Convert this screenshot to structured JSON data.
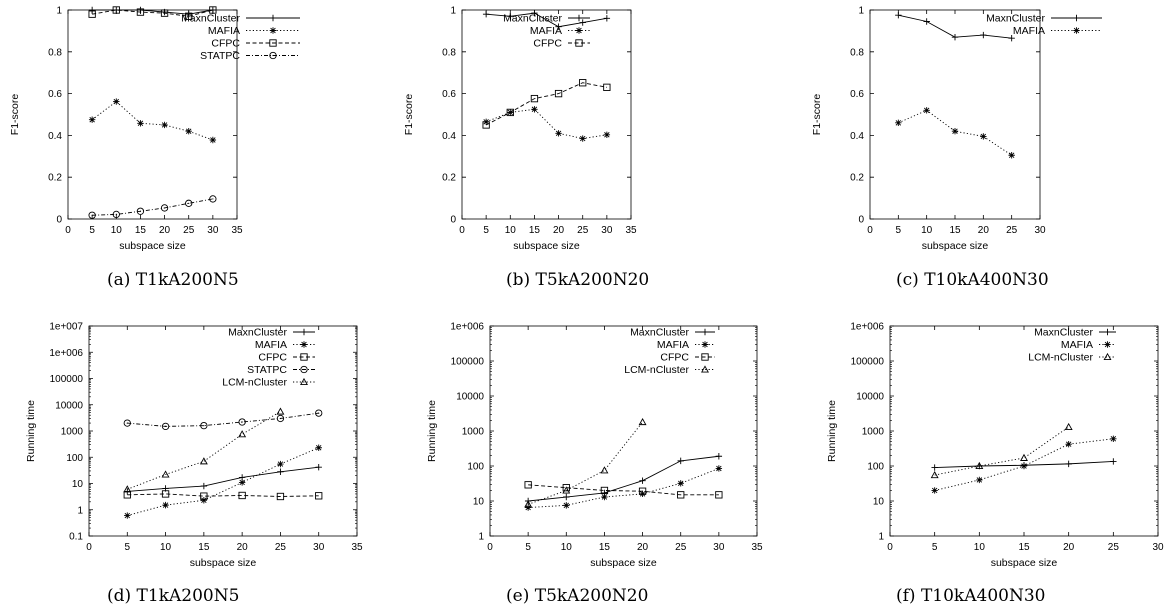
{
  "chart_data": [
    {
      "type": "line",
      "caption": "(a) T1kA200N5",
      "xlabel": "subspace size",
      "ylabel": "F1-score",
      "xlim": [
        0,
        35
      ],
      "xticks": [
        "0",
        "5",
        "10",
        "15",
        "20",
        "25",
        "30",
        "35"
      ],
      "ylim": [
        0,
        1
      ],
      "yticks": [
        "0",
        "0.2",
        "0.4",
        "0.6",
        "0.8",
        "1"
      ],
      "legend_position": "top-right-outside",
      "series": [
        {
          "name": "MaxnCluster",
          "marker": "plus",
          "dash": "solid",
          "x": [
            5,
            10,
            15,
            20,
            25,
            30
          ],
          "y": [
            1.0,
            1.0,
            1.0,
            0.99,
            0.98,
            1.0
          ]
        },
        {
          "name": "MAFIA",
          "marker": "star",
          "dash": "dotted",
          "x": [
            5,
            10,
            15,
            20,
            25,
            30
          ],
          "y": [
            0.475,
            0.562,
            0.458,
            0.45,
            0.42,
            0.378
          ]
        },
        {
          "name": "CFPC",
          "marker": "square",
          "dash": "dashed",
          "x": [
            5,
            10,
            15,
            20,
            25,
            30
          ],
          "y": [
            0.98,
            1.0,
            0.99,
            0.985,
            0.97,
            1.0
          ]
        },
        {
          "name": "STATPC",
          "marker": "circle",
          "dash": "dashdot",
          "x": [
            5,
            10,
            15,
            20,
            25,
            30
          ],
          "y": [
            0.018,
            0.022,
            0.037,
            0.053,
            0.075,
            0.096
          ]
        }
      ]
    },
    {
      "type": "line",
      "caption": "(b) T5kA200N20",
      "xlabel": "subspace size",
      "ylabel": "F1-score",
      "xlim": [
        0,
        35
      ],
      "xticks": [
        "0",
        "5",
        "10",
        "15",
        "20",
        "25",
        "30",
        "35"
      ],
      "ylim": [
        0,
        1
      ],
      "yticks": [
        "0",
        "0.2",
        "0.4",
        "0.6",
        "0.8",
        "1"
      ],
      "legend_position": "top-right",
      "series": [
        {
          "name": "MaxnCluster",
          "marker": "plus",
          "dash": "solid",
          "x": [
            5,
            10,
            15,
            20,
            25,
            30
          ],
          "y": [
            0.98,
            0.97,
            0.985,
            0.92,
            0.94,
            0.96
          ]
        },
        {
          "name": "MAFIA",
          "marker": "star",
          "dash": "dotted",
          "x": [
            5,
            10,
            15,
            20,
            25,
            30
          ],
          "y": [
            0.465,
            0.51,
            0.525,
            0.41,
            0.385,
            0.403
          ]
        },
        {
          "name": "CFPC",
          "marker": "square",
          "dash": "dashed",
          "x": [
            5,
            10,
            15,
            20,
            25,
            30
          ],
          "y": [
            0.45,
            0.51,
            0.576,
            0.6,
            0.652,
            0.63
          ]
        }
      ]
    },
    {
      "type": "line",
      "caption": "(c) T10kA400N30",
      "xlabel": "subspace size",
      "ylabel": "F1-score",
      "xlim": [
        0,
        30
      ],
      "xticks": [
        "0",
        "5",
        "10",
        "15",
        "20",
        "25",
        "30"
      ],
      "ylim": [
        0,
        1
      ],
      "yticks": [
        "0",
        "0.2",
        "0.4",
        "0.6",
        "0.8",
        "1"
      ],
      "legend_position": "top-right-outside",
      "series": [
        {
          "name": "MaxnCluster",
          "marker": "plus",
          "dash": "solid",
          "x": [
            5,
            10,
            15,
            20,
            25
          ],
          "y": [
            0.975,
            0.945,
            0.87,
            0.88,
            0.865
          ]
        },
        {
          "name": "MAFIA",
          "marker": "star",
          "dash": "dotted",
          "x": [
            5,
            10,
            15,
            20,
            25
          ],
          "y": [
            0.46,
            0.52,
            0.42,
            0.395,
            0.305
          ]
        }
      ]
    },
    {
      "type": "line",
      "caption": "(d) T1kA200N5",
      "xlabel": "subspace size",
      "ylabel": "Running time",
      "yscale": "log",
      "xlim": [
        0,
        35
      ],
      "xticks": [
        "0",
        "5",
        "10",
        "15",
        "20",
        "25",
        "30",
        "35"
      ],
      "ylim": [
        0.1,
        10000000
      ],
      "yticks": [
        "0.1",
        "1",
        "10",
        "100",
        "1000",
        "10000",
        "100000",
        "1e+006",
        "1e+007"
      ],
      "legend_position": "top-right",
      "series": [
        {
          "name": "MaxnCluster",
          "marker": "plus",
          "dash": "solid",
          "x": [
            5,
            10,
            15,
            20,
            25,
            30
          ],
          "y": [
            5,
            6.5,
            8,
            17,
            28,
            42
          ]
        },
        {
          "name": "MAFIA",
          "marker": "star",
          "dash": "dotted",
          "x": [
            5,
            10,
            15,
            20,
            25,
            30
          ],
          "y": [
            0.6,
            1.5,
            2.3,
            11,
            55,
            230
          ]
        },
        {
          "name": "CFPC",
          "marker": "square",
          "dash": "dashed",
          "x": [
            5,
            10,
            15,
            20,
            25,
            30
          ],
          "y": [
            3.7,
            4,
            3.3,
            3.5,
            3.2,
            3.4
          ]
        },
        {
          "name": "STATPC",
          "marker": "circle",
          "dash": "dashdot",
          "x": [
            5,
            10,
            15,
            20,
            25,
            30
          ],
          "y": [
            2000,
            1500,
            1600,
            2200,
            3000,
            4800
          ]
        },
        {
          "name": "LCM-nCluster",
          "marker": "triangle",
          "dash": "dotted",
          "x": [
            5,
            10,
            15,
            20,
            25
          ],
          "y": [
            6,
            22,
            70,
            750,
            5500
          ]
        }
      ]
    },
    {
      "type": "line",
      "caption": "(e) T5kA200N20",
      "xlabel": "subspace size",
      "ylabel": "Running time",
      "yscale": "log",
      "xlim": [
        0,
        35
      ],
      "xticks": [
        "0",
        "5",
        "10",
        "15",
        "20",
        "25",
        "30",
        "35"
      ],
      "ylim": [
        1,
        1000000
      ],
      "yticks": [
        "1",
        "10",
        "100",
        "1000",
        "10000",
        "100000",
        "1e+006"
      ],
      "legend_position": "top-right",
      "series": [
        {
          "name": "MaxnCluster",
          "marker": "plus",
          "dash": "solid",
          "x": [
            5,
            10,
            15,
            20,
            25,
            30
          ],
          "y": [
            10,
            13,
            17,
            38,
            140,
            190
          ]
        },
        {
          "name": "MAFIA",
          "marker": "star",
          "dash": "dotted",
          "x": [
            5,
            10,
            15,
            20,
            25,
            30
          ],
          "y": [
            6.5,
            7.5,
            13,
            16,
            32,
            85
          ]
        },
        {
          "name": "CFPC",
          "marker": "square",
          "dash": "dashed",
          "x": [
            5,
            10,
            15,
            20,
            25,
            30
          ],
          "y": [
            29,
            24,
            20,
            19,
            15,
            15
          ]
        },
        {
          "name": "LCM-nCluster",
          "marker": "triangle",
          "dash": "dotted",
          "x": [
            5,
            10,
            15,
            20
          ],
          "y": [
            8,
            20,
            75,
            1800
          ]
        }
      ]
    },
    {
      "type": "line",
      "caption": "(f) T10kA400N30",
      "xlabel": "subspace size",
      "ylabel": "Running time",
      "yscale": "log",
      "xlim": [
        0,
        30
      ],
      "xticks": [
        "0",
        "5",
        "10",
        "15",
        "20",
        "25",
        "30"
      ],
      "ylim": [
        1,
        1000000
      ],
      "yticks": [
        "1",
        "10",
        "100",
        "1000",
        "10000",
        "100000",
        "1e+006"
      ],
      "legend_position": "top-right",
      "series": [
        {
          "name": "MaxnCluster",
          "marker": "plus",
          "dash": "solid",
          "x": [
            5,
            10,
            15,
            20,
            25
          ],
          "y": [
            90,
            100,
            105,
            115,
            135
          ]
        },
        {
          "name": "MAFIA",
          "marker": "star",
          "dash": "dotted",
          "x": [
            5,
            10,
            15,
            20,
            25
          ],
          "y": [
            20,
            40,
            100,
            420,
            600
          ]
        },
        {
          "name": "LCM-nCluster",
          "marker": "triangle",
          "dash": "dotted",
          "x": [
            5,
            10,
            15,
            20
          ],
          "y": [
            55,
            100,
            170,
            1300
          ]
        }
      ]
    }
  ]
}
